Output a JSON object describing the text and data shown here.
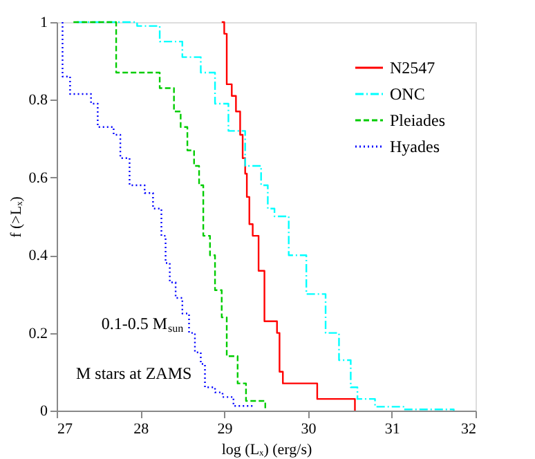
{
  "chart_data": {
    "type": "step",
    "xlabel": "log (Lₓ) (erg/s)",
    "ylabel": "f (>Lₓ)",
    "xlim": [
      27,
      32
    ],
    "ylim": [
      0,
      1
    ],
    "xticks": [
      27,
      28,
      29,
      30,
      31,
      32
    ],
    "yticks": [
      0,
      0.2,
      0.4,
      0.6,
      0.8,
      1
    ],
    "legend": "top right",
    "grid": false,
    "marker": "none",
    "annotations": [
      "0.1-0.5 M$_{sun}$",
      "M stars at ZAMS"
    ],
    "series": [
      {
        "name": "N2547",
        "color": "#ff0000",
        "line_style": "solid",
        "x": [
          28.97,
          29.0,
          29.03,
          29.09,
          29.14,
          29.19,
          29.22,
          29.25,
          29.27,
          29.3,
          29.34,
          29.41,
          29.48,
          29.63,
          29.66,
          29.7,
          30.11,
          30.56
        ],
        "values": [
          1,
          0.97,
          0.84,
          0.81,
          0.77,
          0.71,
          0.65,
          0.61,
          0.55,
          0.48,
          0.45,
          0.36,
          0.23,
          0.2,
          0.1,
          0.07,
          0.03,
          0
        ]
      },
      {
        "name": "ONC",
        "color": "#00ffff",
        "line_style": "dashdot",
        "x": [
          27.24,
          27.68,
          27.96,
          28.23,
          28.5,
          28.72,
          28.89,
          29.05,
          29.25,
          29.44,
          29.52,
          29.6,
          29.77,
          29.98,
          30.21,
          30.37,
          30.51,
          30.59,
          30.8,
          31.14,
          31.74
        ],
        "values": [
          1,
          1,
          0.99,
          0.95,
          0.91,
          0.87,
          0.79,
          0.72,
          0.63,
          0.58,
          0.52,
          0.5,
          0.4,
          0.3,
          0.2,
          0.13,
          0.06,
          0.03,
          0.01,
          0.003,
          0
        ]
      },
      {
        "name": "Pleiades",
        "color": "#00cc00",
        "line_style": "dashed",
        "x": [
          27.2,
          27.71,
          28.23,
          28.4,
          28.48,
          28.56,
          28.64,
          28.7,
          28.75,
          28.83,
          28.89,
          28.97,
          29.03,
          29.16,
          29.26,
          29.49
        ],
        "values": [
          1,
          0.87,
          0.83,
          0.77,
          0.73,
          0.67,
          0.63,
          0.58,
          0.45,
          0.4,
          0.31,
          0.24,
          0.14,
          0.07,
          0.025,
          0
        ]
      },
      {
        "name": "Hyades",
        "color": "#0000ff",
        "line_style": "dotted",
        "x": [
          27.07,
          27.07,
          27.16,
          27.41,
          27.49,
          27.68,
          27.76,
          27.87,
          28.05,
          28.15,
          28.25,
          28.3,
          28.35,
          28.42,
          28.5,
          28.58,
          28.65,
          28.72,
          28.77,
          28.89,
          28.98,
          29.11,
          29.36
        ],
        "values": [
          1,
          0.86,
          0.815,
          0.79,
          0.73,
          0.71,
          0.65,
          0.58,
          0.56,
          0.52,
          0.45,
          0.38,
          0.33,
          0.29,
          0.25,
          0.2,
          0.15,
          0.12,
          0.06,
          0.047,
          0.035,
          0.012,
          0.01
        ]
      }
    ]
  }
}
